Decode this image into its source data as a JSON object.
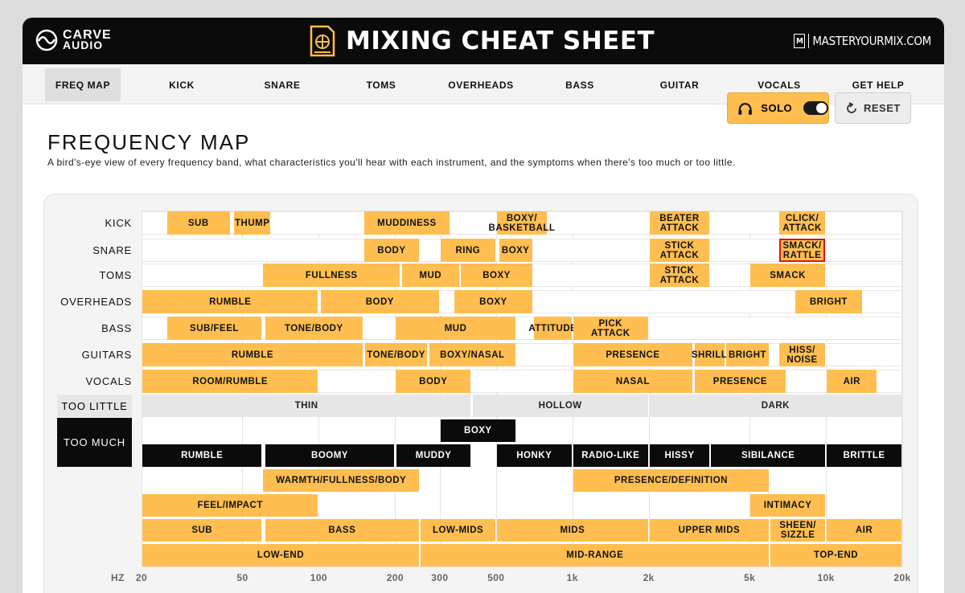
{
  "header": {
    "brand_left_line1": "CARVE",
    "brand_left_line2": "AUDIO",
    "title": "MIXING CHEAT SHEET",
    "brand_right_mark": "M",
    "brand_right": "MASTERYOURMIX.COM"
  },
  "nav": [
    {
      "label": "FREQ MAP",
      "active": true
    },
    {
      "label": "KICK"
    },
    {
      "label": "SNARE"
    },
    {
      "label": "TOMS"
    },
    {
      "label": "OVERHEADS"
    },
    {
      "label": "BASS"
    },
    {
      "label": "GUITAR"
    },
    {
      "label": "VOCALS"
    },
    {
      "label": "GET HELP"
    }
  ],
  "controls": {
    "solo_label": "SOLO",
    "solo_on": true,
    "reset_label": "RESET"
  },
  "page": {
    "title": "FREQUENCY MAP",
    "subtitle": "A bird's-eye view of every frequency band, what characteristics you'll hear with each instrument, and the symptoms when there's too much or too little."
  },
  "colors": {
    "band": "#ffbe4f",
    "symptom_little": "#e6e6e6",
    "symptom_much": "#0b0b0b",
    "selected": "#e0140e"
  },
  "freq_map": {
    "axis_unit": "HZ",
    "x_min": 20,
    "x_max": 20000,
    "scale": "log",
    "ticks": [
      {
        "v": 20,
        "label": "20"
      },
      {
        "v": 50,
        "label": "50"
      },
      {
        "v": 100,
        "label": "100"
      },
      {
        "v": 200,
        "label": "200"
      },
      {
        "v": 300,
        "label": "300"
      },
      {
        "v": 500,
        "label": "500"
      },
      {
        "v": 1000,
        "label": "1k"
      },
      {
        "v": 2000,
        "label": "2k"
      },
      {
        "v": 5000,
        "label": "5k"
      },
      {
        "v": 10000,
        "label": "10k"
      },
      {
        "v": 20000,
        "label": "20k"
      }
    ],
    "instruments": [
      {
        "name": "KICK",
        "bands": [
          {
            "label": "SUB",
            "from": 25,
            "to": 45
          },
          {
            "label": "THUMP",
            "from": 46,
            "to": 65
          },
          {
            "label": "MUDDINESS",
            "from": 150,
            "to": 330
          },
          {
            "label": "BOXY/\nBASKETBALL",
            "from": 500,
            "to": 800
          },
          {
            "label": "BEATER\nATTACK",
            "from": 2000,
            "to": 3500
          },
          {
            "label": "CLICK/\nATTACK",
            "from": 6500,
            "to": 10000
          }
        ]
      },
      {
        "name": "SNARE",
        "bands": [
          {
            "label": "BODY",
            "from": 150,
            "to": 250
          },
          {
            "label": "RING",
            "from": 300,
            "to": 500
          },
          {
            "label": "BOXY",
            "from": 510,
            "to": 700
          },
          {
            "label": "STICK\nATTACK",
            "from": 2000,
            "to": 3500
          },
          {
            "label": "SMACK/\nRATTLE",
            "from": 6500,
            "to": 10000,
            "selected": true
          }
        ]
      },
      {
        "name": "TOMS",
        "bands": [
          {
            "label": "FULLNESS",
            "from": 60,
            "to": 210
          },
          {
            "label": "MUD",
            "from": 211,
            "to": 360
          },
          {
            "label": "BOXY",
            "from": 361,
            "to": 700
          },
          {
            "label": "STICK\nATTACK",
            "from": 2000,
            "to": 3500
          },
          {
            "label": "SMACK",
            "from": 5000,
            "to": 10000
          }
        ]
      },
      {
        "name": "OVERHEADS",
        "bands": [
          {
            "label": "RUMBLE",
            "from": 20,
            "to": 100
          },
          {
            "label": "BODY",
            "from": 101,
            "to": 300
          },
          {
            "label": "BOXY",
            "from": 340,
            "to": 700
          },
          {
            "label": "BRIGHT",
            "from": 7500,
            "to": 14000
          }
        ]
      },
      {
        "name": "BASS",
        "bands": [
          {
            "label": "SUB/FEEL",
            "from": 25,
            "to": 60
          },
          {
            "label": "TONE/BODY",
            "from": 61,
            "to": 150
          },
          {
            "label": "MUD",
            "from": 200,
            "to": 600
          },
          {
            "label": "ATTITUDE",
            "from": 700,
            "to": 1000
          },
          {
            "label": "PICK\nATTACK",
            "from": 1001,
            "to": 2000
          }
        ]
      },
      {
        "name": "GUITARS",
        "bands": [
          {
            "label": "RUMBLE",
            "from": 20,
            "to": 150
          },
          {
            "label": "TONE/BODY",
            "from": 151,
            "to": 270
          },
          {
            "label": "BOXY/NASAL",
            "from": 271,
            "to": 600
          },
          {
            "label": "PRESENCE",
            "from": 1000,
            "to": 3000
          },
          {
            "label": "SHRILL",
            "from": 3010,
            "to": 4000
          },
          {
            "label": "BRIGHT",
            "from": 4010,
            "to": 6000
          },
          {
            "label": "HISS/\nNOISE",
            "from": 6500,
            "to": 10000
          }
        ]
      },
      {
        "name": "VOCALS",
        "bands": [
          {
            "label": "ROOM/RUMBLE",
            "from": 20,
            "to": 100
          },
          {
            "label": "BODY",
            "from": 200,
            "to": 400
          },
          {
            "label": "NASAL",
            "from": 1000,
            "to": 3000
          },
          {
            "label": "PRESENCE",
            "from": 3010,
            "to": 7000
          },
          {
            "label": "AIR",
            "from": 10000,
            "to": 16000
          }
        ]
      }
    ],
    "too_little": {
      "name": "TOO LITTLE",
      "bands": [
        {
          "label": "THIN",
          "from": 20,
          "to": 400
        },
        {
          "label": "HOLLOW",
          "from": 401,
          "to": 2000
        },
        {
          "label": "DARK",
          "from": 2001,
          "to": 20000
        }
      ]
    },
    "too_much": {
      "name": "TOO MUCH",
      "rows": [
        [
          {
            "label": "BOXY",
            "from": 300,
            "to": 600
          }
        ],
        [
          {
            "label": "RUMBLE",
            "from": 20,
            "to": 60
          },
          {
            "label": "BOOMY",
            "from": 61,
            "to": 200
          },
          {
            "label": "MUDDY",
            "from": 201,
            "to": 400
          },
          {
            "label": "HONKY",
            "from": 500,
            "to": 1000
          },
          {
            "label": "RADIO-LIKE",
            "from": 1001,
            "to": 2000
          },
          {
            "label": "HISSY",
            "from": 2001,
            "to": 3500
          },
          {
            "label": "SIBILANCE",
            "from": 3501,
            "to": 10000
          },
          {
            "label": "BRITTLE",
            "from": 10001,
            "to": 20000
          }
        ]
      ]
    },
    "general": [
      [
        {
          "label": "WARMTH/FULLNESS/BODY",
          "from": 60,
          "to": 250
        },
        {
          "label": "PRESENCE/DEFINITION",
          "from": 1000,
          "to": 6000
        }
      ],
      [
        {
          "label": "FEEL/IMPACT",
          "from": 20,
          "to": 100
        },
        {
          "label": "INTIMACY",
          "from": 5000,
          "to": 10000
        }
      ],
      [
        {
          "label": "SUB",
          "from": 20,
          "to": 60
        },
        {
          "label": "BASS",
          "from": 61,
          "to": 250
        },
        {
          "label": "LOW-MIDS",
          "from": 251,
          "to": 500
        },
        {
          "label": "MIDS",
          "from": 501,
          "to": 2000
        },
        {
          "label": "UPPER MIDS",
          "from": 2001,
          "to": 6000
        },
        {
          "label": "SHEEN/\nSIZZLE",
          "from": 6001,
          "to": 10000
        },
        {
          "label": "AIR",
          "from": 10001,
          "to": 20000
        }
      ],
      [
        {
          "label": "LOW-END",
          "from": 20,
          "to": 250
        },
        {
          "label": "MID-RANGE",
          "from": 251,
          "to": 6000
        },
        {
          "label": "TOP-END",
          "from": 6001,
          "to": 20000
        }
      ]
    ]
  }
}
